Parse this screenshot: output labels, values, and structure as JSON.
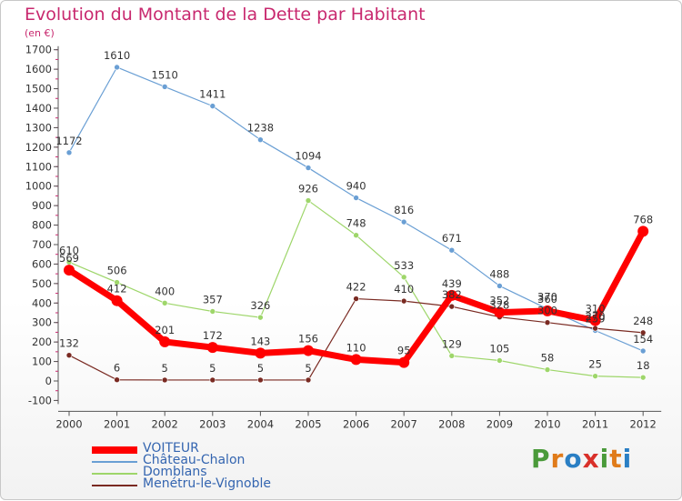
{
  "header": {
    "title": "Evolution du Montant de la Dette par Habitant",
    "subtitle": "(en €)"
  },
  "logo": {
    "text": "Proxiti",
    "letters": [
      {
        "ch": "P",
        "color": "#4a9a3a"
      },
      {
        "ch": "r",
        "color": "#e07b1a"
      },
      {
        "ch": "o",
        "color": "#2a7fc4"
      },
      {
        "ch": "x",
        "color": "#d9302a"
      },
      {
        "ch": "i",
        "color": "#4a9a3a"
      },
      {
        "ch": "t",
        "color": "#e07b1a"
      },
      {
        "ch": "i",
        "color": "#2a7fc4"
      }
    ]
  },
  "chart_data": {
    "type": "line",
    "title": "Evolution du Montant de la Dette par Habitant",
    "subtitle": "(en €)",
    "xlabel": "",
    "ylabel": "",
    "ylim": [
      -100,
      1700
    ],
    "ytick_step": 100,
    "grid": false,
    "legend_position": "bottom-left",
    "x": [
      "2000",
      "2001",
      "2002",
      "2003",
      "2004",
      "2005",
      "2006",
      "2007",
      "2008",
      "2009",
      "2010",
      "2011",
      "2012"
    ],
    "series": [
      {
        "name": "Château-Chalon",
        "color": "#6a9fd4",
        "width": 1.2,
        "marker": 3,
        "values": [
          1172,
          1610,
          1510,
          1411,
          1238,
          1094,
          940,
          816,
          671,
          488,
          370,
          259,
          154
        ],
        "labels": [
          "1172",
          "1610",
          "1510",
          "1411",
          "1238",
          "1094",
          "940",
          "816",
          "671",
          "488",
          "370",
          "259",
          "154"
        ]
      },
      {
        "name": "Domblans",
        "color": "#9ed66a",
        "width": 1.2,
        "marker": 3,
        "values": [
          610,
          506,
          400,
          357,
          326,
          926,
          748,
          533,
          129,
          105,
          58,
          25,
          18
        ],
        "labels": [
          "610",
          "506",
          "400",
          "357",
          "326",
          "926",
          "748",
          "533",
          "129",
          "105",
          "58",
          "25",
          "18"
        ]
      },
      {
        "name": "Menétru-le-Vignoble",
        "color": "#7a2a22",
        "width": 1.2,
        "marker": 3,
        "values": [
          132,
          6,
          5,
          5,
          5,
          5,
          422,
          410,
          382,
          328,
          300,
          270,
          248
        ],
        "labels": [
          "132",
          "6",
          "5",
          "5",
          "5",
          "5",
          "422",
          "410",
          "382",
          "328",
          "300",
          "270",
          "248"
        ]
      },
      {
        "name": "VOITEUR",
        "color": "#ff0000",
        "width": 7,
        "marker": 6,
        "values": [
          569,
          412,
          201,
          172,
          143,
          156,
          110,
          95,
          439,
          352,
          360,
          310,
          768
        ],
        "labels": [
          "569",
          "412",
          "201",
          "172",
          "143",
          "156",
          "110",
          "95",
          "439",
          "352",
          "360",
          "310",
          "768"
        ]
      }
    ],
    "legend_order": [
      "VOITEUR",
      "Château-Chalon",
      "Domblans",
      "Menétru-le-Vignoble"
    ]
  }
}
